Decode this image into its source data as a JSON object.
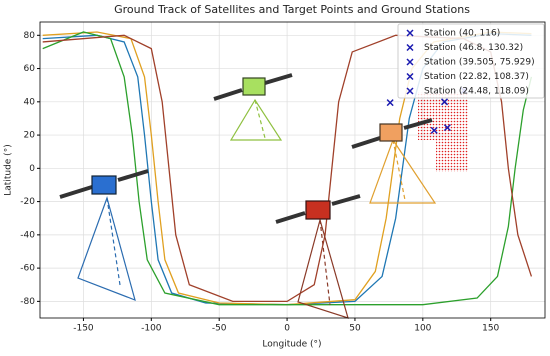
{
  "chart_data": {
    "type": "line",
    "title": "Ground Track of Satellites and Target Points and Ground Stations",
    "xlabel": "Longitude (°)",
    "ylabel": "Latitude (°)",
    "xlim": [
      -182,
      190
    ],
    "ylim": [
      -90,
      88
    ],
    "xticks": [
      -150,
      -100,
      -50,
      0,
      50,
      100,
      150
    ],
    "yticks": [
      -80,
      -60,
      -40,
      -20,
      0,
      20,
      40,
      60,
      80
    ],
    "grid": true,
    "series": [
      {
        "color": "#1f77b4",
        "x": [
          -180,
          -140,
          -120,
          -110,
          -105,
          -100,
          -95,
          -85,
          -60,
          0,
          50,
          70,
          80,
          85,
          90,
          100,
          115,
          150,
          180
        ],
        "y": [
          78,
          80,
          76,
          55,
          20,
          -20,
          -55,
          -75,
          -81,
          -82,
          -80,
          -65,
          -30,
          0,
          30,
          60,
          76,
          81,
          80
        ]
      },
      {
        "color": "#e0a020",
        "x": [
          -180,
          -140,
          -115,
          -105,
          -100,
          -95,
          -90,
          -80,
          -50,
          0,
          50,
          65,
          73,
          78,
          83,
          92,
          108,
          150,
          180
        ],
        "y": [
          80,
          82,
          78,
          55,
          20,
          -20,
          -55,
          -75,
          -81,
          -82,
          -79,
          -62,
          -30,
          0,
          30,
          60,
          76,
          82,
          81
        ]
      },
      {
        "color": "#2ca02c",
        "x": [
          -180,
          -150,
          -130,
          -120,
          -114,
          -109,
          -103,
          -90,
          -50,
          100,
          140,
          155,
          163,
          168,
          174,
          180
        ],
        "y": [
          72,
          82,
          78,
          55,
          20,
          -20,
          -55,
          -75,
          -82,
          -82,
          -78,
          -65,
          -35,
          0,
          35,
          55
        ]
      },
      {
        "color": "#a0402a",
        "x": [
          -180,
          -120,
          -100,
          -92,
          -87,
          -82,
          -72,
          -40,
          0,
          20,
          28,
          33,
          38,
          48,
          80,
          130,
          150,
          158,
          163,
          170,
          180
        ],
        "y": [
          76,
          80,
          72,
          40,
          0,
          -40,
          -70,
          -80,
          -80,
          -70,
          -40,
          0,
          40,
          70,
          80,
          78,
          70,
          40,
          0,
          -40,
          -65
        ]
      }
    ],
    "stations": [
      {
        "name": "Station (40, 116)",
        "color": "#1a1ab0",
        "x": 116,
        "y": 40
      },
      {
        "name": "Station (46.8, 130.32)",
        "color": "#1a1ab0",
        "x": 130.32,
        "y": 46.8
      },
      {
        "name": "Station (39.505, 75.929)",
        "color": "#1a1ab0",
        "x": 75.929,
        "y": 39.505
      },
      {
        "name": "Station (22.82, 108.37)",
        "color": "#1a1ab0",
        "x": 108.37,
        "y": 22.82
      },
      {
        "name": "Station (24.48, 118.09)",
        "color": "#1a1ab0",
        "x": 118.09,
        "y": 24.48
      }
    ]
  }
}
